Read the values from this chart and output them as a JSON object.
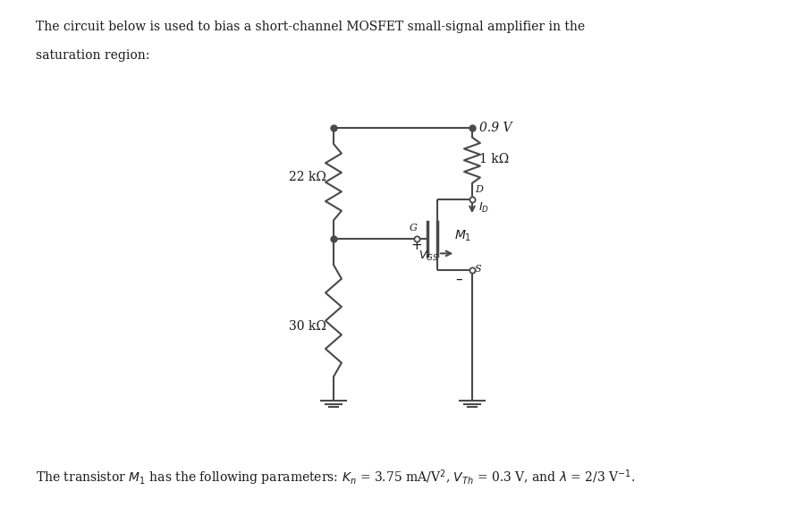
{
  "title_text": "The circuit below is used to bias a short-channel MOSFET small-signal amplifier in the\nsaturation region:",
  "bottom_text": "The transistor $M_1$ has the following parameters: $K_n$ = 3.75 mA/V², $V_{Th}$ = 0.3 V, and λ = 2/3 V⁻¹.",
  "vdd_label": "0.9 V",
  "rd_label": "1 kΩ",
  "r1_label": "22 kΩ",
  "r2_label": "30 kΩ",
  "id_label": "$I_D$",
  "vgs_label": "$V_{GS}$",
  "m1_label": "$M_1$",
  "d_label": "D",
  "s_label": "S",
  "g_label": "G",
  "line_color": "#4a4a4a",
  "text_color": "#1a1a1a",
  "bg_color": "#ffffff",
  "fig_width": 8.89,
  "fig_height": 5.77
}
